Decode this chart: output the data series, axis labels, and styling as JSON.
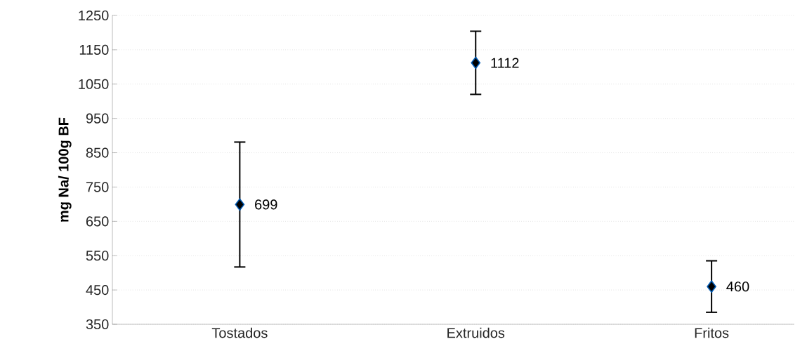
{
  "chart_data": {
    "type": "scatter",
    "ylabel": "mg Na/ 100g BF",
    "categories": [
      "Tostados",
      "Extruidos",
      "Fritos"
    ],
    "values": [
      699,
      1112,
      460
    ],
    "errors": [
      182,
      92,
      75
    ],
    "color": "#000000",
    "marker": "diamond",
    "data_labels": true,
    "ylim": [
      350,
      1250
    ],
    "yticks": [
      350,
      450,
      550,
      650,
      750,
      850,
      950,
      1050,
      1150,
      1250
    ],
    "grid": "y"
  }
}
